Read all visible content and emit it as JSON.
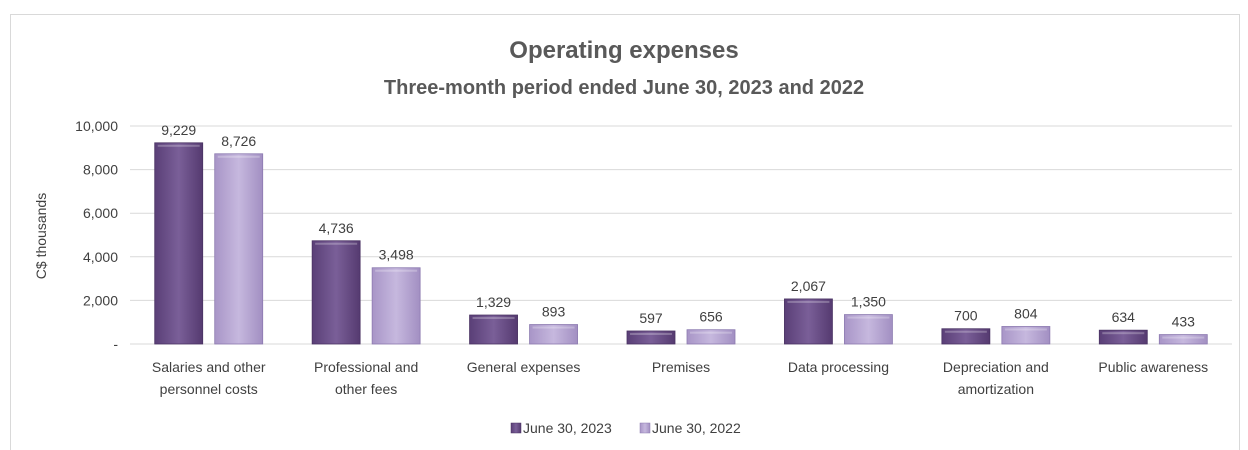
{
  "chart_data": {
    "type": "bar",
    "title": "Operating expenses",
    "subtitle": "Three-month period ended June 30, 2023 and 2022",
    "ylabel": "C$ thousands",
    "ylim": [
      0,
      10000
    ],
    "yticks": [
      {
        "value": 0,
        "label": "-"
      },
      {
        "value": 2000,
        "label": "2,000"
      },
      {
        "value": 4000,
        "label": "4,000"
      },
      {
        "value": 6000,
        "label": "6,000"
      },
      {
        "value": 8000,
        "label": "8,000"
      },
      {
        "value": 10000,
        "label": "10,000"
      }
    ],
    "grid": true,
    "legend_position": "bottom",
    "categories": [
      [
        "Salaries and other",
        "personnel costs"
      ],
      [
        "Professional and",
        "other fees"
      ],
      [
        "General expenses"
      ],
      [
        "Premises"
      ],
      [
        "Data processing"
      ],
      [
        "Depreciation and",
        "amortization"
      ],
      [
        "Public awareness"
      ]
    ],
    "series": [
      {
        "name": "June 30, 2023",
        "color": "#6b5088",
        "values": [
          9229,
          4736,
          1329,
          597,
          2067,
          700,
          634
        ],
        "labels": [
          "9,229",
          "4,736",
          "1,329",
          "597",
          "2,067",
          "700",
          "634"
        ]
      },
      {
        "name": "June 30, 2022",
        "color": "#b7a6d4",
        "values": [
          8726,
          3498,
          893,
          656,
          1350,
          804,
          433
        ],
        "labels": [
          "8,726",
          "3,498",
          "893",
          "656",
          "1,350",
          "804",
          "433"
        ]
      }
    ]
  }
}
